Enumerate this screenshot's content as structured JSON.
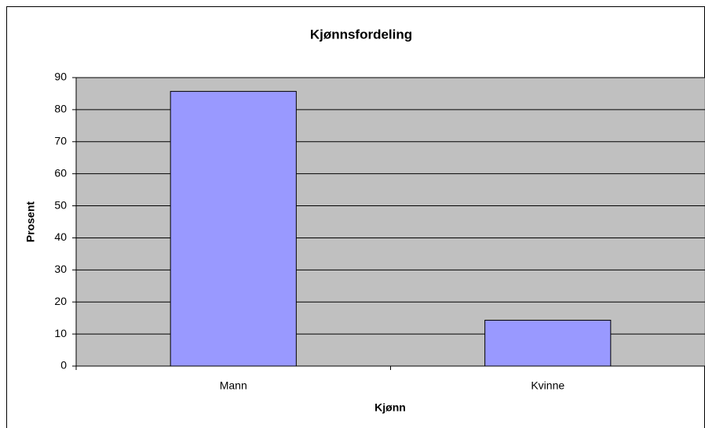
{
  "chart_data": {
    "type": "bar",
    "title": "Kjønnsfordeling",
    "x_label": "Kjønn",
    "y_label": "Prosent",
    "categories": [
      "Mann",
      "Kvinne"
    ],
    "values": [
      85.7,
      14.3
    ],
    "color": "#9999ff",
    "ylim": [
      0,
      90
    ],
    "yticks": [
      0,
      10,
      20,
      30,
      40,
      50,
      60,
      70,
      80,
      90
    ],
    "grid": true
  }
}
